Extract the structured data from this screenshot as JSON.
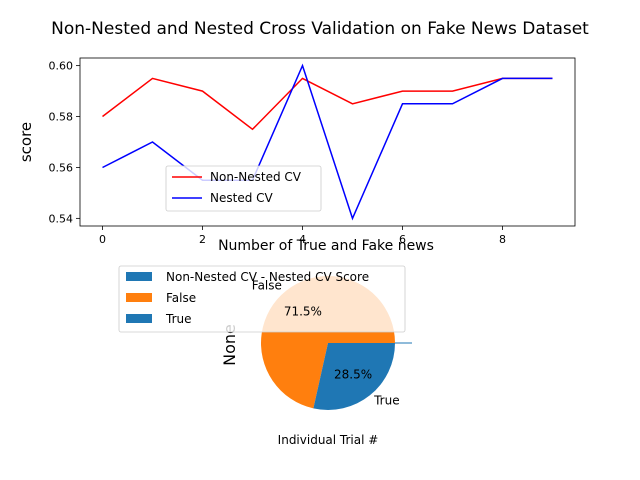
{
  "chart_data": [
    {
      "type": "line",
      "title": "Non-Nested and Nested Cross Validation on Fake News Dataset",
      "xlabel": "Individual Trial #",
      "ylabel": "score",
      "x": [
        0,
        1,
        2,
        3,
        4,
        5,
        6,
        7,
        8,
        9
      ],
      "xticks": [
        0,
        2,
        4,
        6,
        8
      ],
      "yticks": [
        0.54,
        0.56,
        0.58,
        0.6
      ],
      "xlim": [
        -0.45,
        9.45
      ],
      "ylim": [
        0.537,
        0.603
      ],
      "series": [
        {
          "name": "Non-Nested CV",
          "color": "#ff0000",
          "values": [
            0.58,
            0.595,
            0.59,
            0.575,
            0.595,
            0.585,
            0.59,
            0.59,
            0.595,
            0.595
          ]
        },
        {
          "name": "Nested CV",
          "color": "#0000ff",
          "values": [
            0.56,
            0.57,
            0.555,
            0.555,
            0.6,
            0.54,
            0.585,
            0.585,
            0.595,
            0.595
          ]
        }
      ],
      "legend": "lower-center",
      "grid": false
    },
    {
      "type": "pie",
      "title": "Number of True and Fake news",
      "ylabel": "None",
      "slices": [
        {
          "label": "False",
          "value": 71.5,
          "pct_label": "71.5%",
          "color": "#ff7f0e"
        },
        {
          "label": "True",
          "value": 28.5,
          "pct_label": "28.5%",
          "color": "#1f77b4"
        }
      ],
      "legend": {
        "entries": [
          {
            "label": "Non-Nested CV - Nested CV Score",
            "color": "#1f77b4"
          },
          {
            "label": "False",
            "color": "#ff7f0e"
          },
          {
            "label": "True",
            "color": "#1f77b4"
          }
        ],
        "placement": "upper-left"
      }
    }
  ]
}
